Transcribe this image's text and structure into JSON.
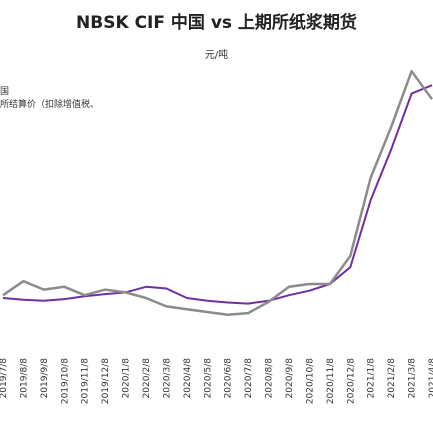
{
  "chart_data": {
    "type": "line",
    "title": "NBSK CIF 中国 vs 上期所纸浆期货",
    "subtitle": "元/吨",
    "legend": [
      "国",
      "所结算价（扣除增值税、"
    ],
    "legend_placement": "top-left",
    "x": [
      "2019/7/8",
      "2019/8/8",
      "2019/9/8",
      "2019/10/8",
      "2019/11/8",
      "2019/12/8",
      "2020/1/8",
      "2020/2/8",
      "2020/3/8",
      "2020/4/8",
      "2020/5/8",
      "2020/6/8",
      "2020/7/8",
      "2020/8/8",
      "2020/9/8",
      "2020/10/8",
      "2020/11/8",
      "2020/12/8",
      "2021/1/8",
      "2021/2/8",
      "2021/3/8",
      "2021/4/8"
    ],
    "series": [
      {
        "name": "国",
        "color": "#7030a0",
        "values": [
          4250,
          4220,
          4200,
          4230,
          4280,
          4320,
          4350,
          4450,
          4420,
          4250,
          4200,
          4170,
          4150,
          4200,
          4300,
          4380,
          4500,
          4800,
          6000,
          6900,
          7900,
          8050
        ]
      },
      {
        "name": "所结算价（扣除增值税、",
        "color": "#8c8c8c",
        "values": [
          4300,
          4550,
          4400,
          4450,
          4300,
          4400,
          4350,
          4250,
          4100,
          4050,
          4000,
          3950,
          3980,
          4180,
          4450,
          4500,
          4500,
          5000,
          6400,
          7300,
          8300,
          7800
        ]
      }
    ],
    "ylim": [
      3500,
      8500
    ],
    "grid": false
  }
}
